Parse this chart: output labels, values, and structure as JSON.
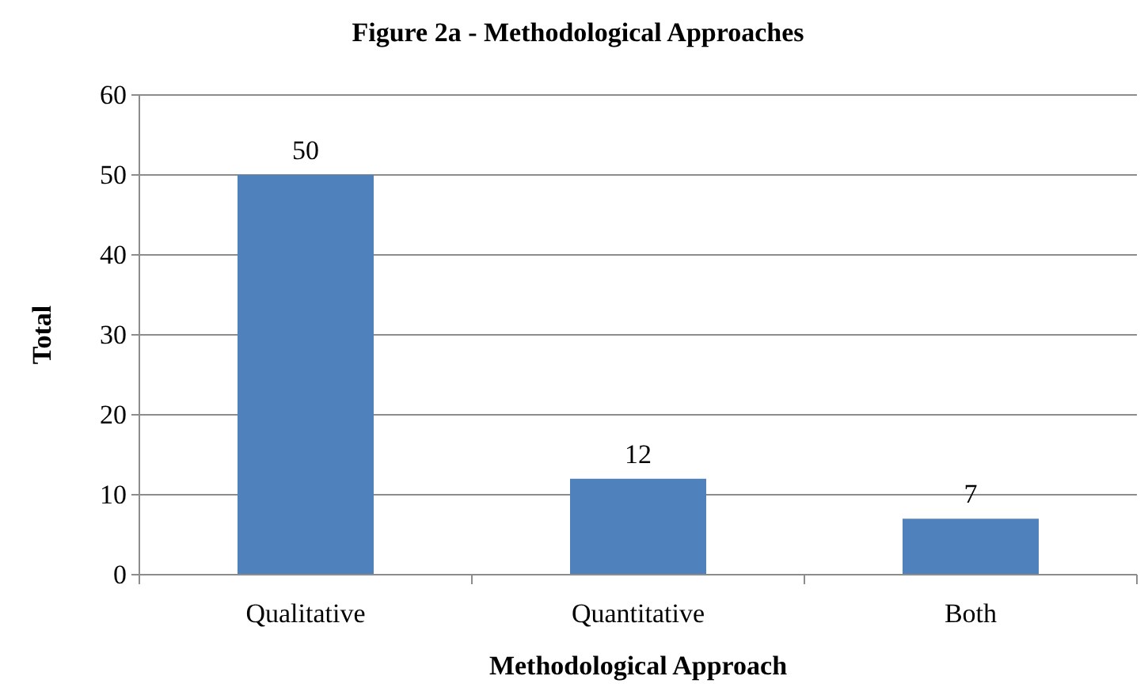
{
  "chart_data": {
    "type": "bar",
    "title": "Figure 2a - Methodological Approaches",
    "xlabel": "Methodological Approach",
    "ylabel": "Total",
    "categories": [
      "Qualitative",
      "Quantitative",
      "Both"
    ],
    "values": [
      50,
      12,
      7
    ],
    "color": "#4f81bd",
    "data_labels": true,
    "ylim": [
      0,
      60
    ],
    "yticks": [
      0,
      10,
      20,
      30,
      40,
      50,
      60
    ],
    "grid": "y"
  }
}
